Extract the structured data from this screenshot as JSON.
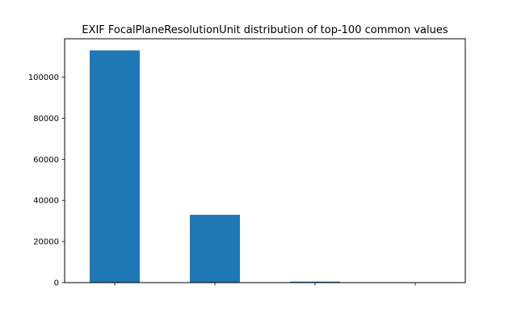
{
  "chart_data": {
    "type": "bar",
    "title": "EXIF FocalPlaneResolutionUnit distribution of top-100 common values",
    "xlabel": "",
    "ylabel": "",
    "categories": [
      "",
      "",
      "",
      ""
    ],
    "values": [
      113000,
      33000,
      500,
      80
    ],
    "ylim": [
      0,
      118650
    ],
    "yticks": [
      0,
      20000,
      40000,
      60000,
      80000,
      100000
    ],
    "ytick_labels": [
      "0",
      "20000",
      "40000",
      "60000",
      "80000",
      "100000"
    ],
    "grid": false,
    "legend": "none",
    "bar_color": "#1f77b4"
  }
}
